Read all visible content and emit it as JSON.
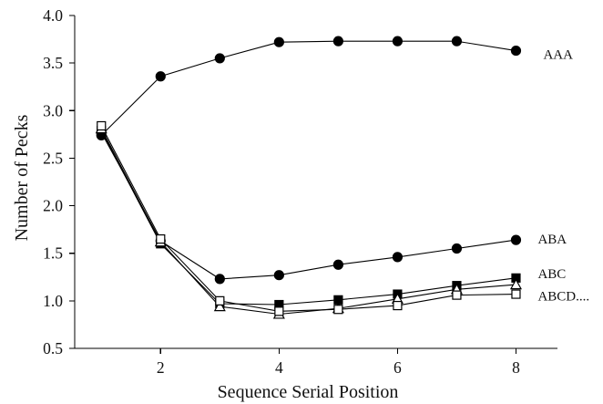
{
  "chart_data": {
    "type": "line",
    "xlabel": "Sequence Serial Position",
    "ylabel": "Number of Pecks",
    "x": [
      1,
      2,
      3,
      4,
      5,
      6,
      7,
      8
    ],
    "xlim": [
      0.55,
      8.7
    ],
    "ylim": [
      0.5,
      4.0
    ],
    "xticks": [
      2,
      4,
      6,
      8
    ],
    "xtick_labels": [
      "2",
      "4",
      "6",
      "8"
    ],
    "yticks": [
      0.5,
      1.0,
      1.5,
      2.0,
      2.5,
      3.0,
      3.5,
      4.0
    ],
    "ytick_labels": [
      "0.5",
      "1.0",
      "1.5",
      "2.0",
      "2.5",
      "3.0",
      "3.5",
      "4.0"
    ],
    "grid": false,
    "line_color": "#000000",
    "series": [
      {
        "name": "AAA",
        "marker": "circle",
        "marker_fill": "#000000",
        "values": [
          2.74,
          3.36,
          3.55,
          3.72,
          3.73,
          3.73,
          3.73,
          3.63
        ]
      },
      {
        "name": "ABA",
        "marker": "circle",
        "marker_fill": "#000000",
        "values": [
          2.77,
          1.63,
          1.23,
          1.27,
          1.38,
          1.46,
          1.55,
          1.64
        ]
      },
      {
        "name": "ABC",
        "marker": "square",
        "marker_fill": "#000000",
        "values": [
          2.79,
          1.6,
          0.97,
          0.96,
          1.01,
          1.07,
          1.16,
          1.24
        ]
      },
      {
        "marker": "triangle",
        "marker_fill": "#ffffff",
        "values": [
          2.81,
          1.62,
          0.94,
          0.86,
          0.92,
          1.02,
          1.12,
          1.17
        ]
      },
      {
        "name": "ABCD....",
        "marker": "square",
        "marker_fill": "#ffffff",
        "values": [
          2.84,
          1.65,
          1.0,
          0.89,
          0.91,
          0.95,
          1.06,
          1.07
        ]
      }
    ]
  }
}
